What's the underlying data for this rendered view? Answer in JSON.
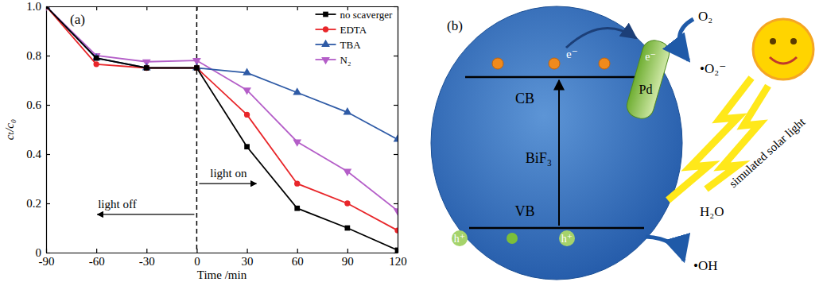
{
  "chart_data": {
    "type": "line",
    "panel_label": "(a)",
    "x_label": "Time /min",
    "y_label": "cₜ/c₀",
    "x": [
      -90,
      -60,
      -30,
      0,
      30,
      60,
      90,
      120
    ],
    "xlim": [
      -90,
      120
    ],
    "xticks": [
      -90,
      -60,
      -30,
      0,
      30,
      60,
      90,
      120
    ],
    "ylim": [
      0,
      1
    ],
    "yticks": [
      0,
      0.2,
      0.4,
      0.6,
      0.8,
      {
        "value": 1,
        "label": "1.0"
      }
    ],
    "legend": "upper right",
    "annotations": [
      {
        "text": "light off",
        "x": 0
      },
      {
        "text": "light on",
        "x": 0
      }
    ],
    "series": [
      {
        "name": "no scaverger",
        "color": "#000000",
        "marker": "square",
        "values": [
          1.0,
          0.79,
          0.75,
          0.75,
          0.43,
          0.18,
          0.1,
          0.01
        ]
      },
      {
        "name": "EDTA",
        "color": "#e8262a",
        "marker": "circle",
        "values": [
          1.0,
          0.765,
          0.75,
          0.75,
          0.56,
          0.28,
          0.2,
          0.09
        ]
      },
      {
        "name": "TBA",
        "color": "#2f5ba6",
        "marker": "triangle",
        "values": [
          1.0,
          0.79,
          0.75,
          0.75,
          0.73,
          0.65,
          0.57,
          0.46
        ]
      },
      {
        "name": "N₂",
        "color": "#b45ec8",
        "marker": "triangle-down",
        "values": [
          1.0,
          0.8,
          0.775,
          0.78,
          0.66,
          0.45,
          0.33,
          0.17
        ]
      }
    ]
  },
  "diagram": {
    "panel_label": "(b)",
    "material": "BiF₃",
    "cocatalyst": "Pd",
    "conduction_band": "CB",
    "valence_band": "VB",
    "electron_labels": [
      "e⁻",
      "e⁻"
    ],
    "hole_labels": [
      "h⁺",
      "h⁺"
    ],
    "light": "simulated solar light",
    "reduction": {
      "reactant": "O₂",
      "product": "•O₂⁻"
    },
    "oxidation": {
      "reactant": "H₂O",
      "product": "•OH"
    }
  }
}
